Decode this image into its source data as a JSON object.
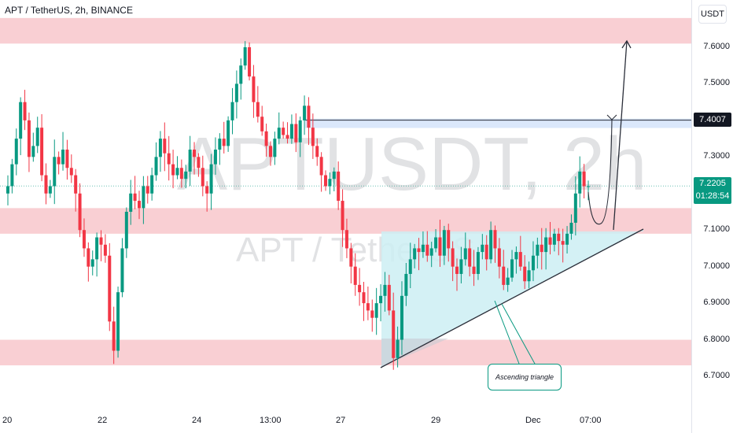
{
  "header": {
    "symbol_title": "APT / TetherUS, 2h, BINANCE"
  },
  "watermark": {
    "main": "APTUSDT, 2h",
    "sub": "APT / TetherUS"
  },
  "axis": {
    "unit_label": "USDT"
  },
  "colors": {
    "up": "#089981",
    "down": "#f23645",
    "zone": "#f8c7cb",
    "triangle_fill": "#cdeff3",
    "resistance_band": "#dbe8fb",
    "line": "#2a2e39"
  },
  "annotation": {
    "label": "Ascending triangle"
  },
  "chart_data": {
    "type": "candlestick",
    "title": "",
    "y_ticks": [
      "7.6000",
      "7.5000",
      "7.4000",
      "7.3000",
      "7.2000",
      "7.1000",
      "7.0000",
      "6.9000",
      "6.8000",
      "6.7000"
    ],
    "x_ticks": [
      "20",
      "22",
      "24",
      "13:00",
      "27",
      "29",
      "Dec",
      "07:00"
    ],
    "ylim": [
      6.64,
      7.73
    ],
    "resistance_level": {
      "price": "7.4007",
      "value": 7.4007
    },
    "last_price": {
      "price": "7.2205",
      "countdown": "01:28:54",
      "value": 7.2205
    },
    "zones": [
      {
        "from": 7.61,
        "to": 7.68
      },
      {
        "from": 7.09,
        "to": 7.16
      },
      {
        "from": 6.73,
        "to": 6.8
      }
    ],
    "closes": [
      7.22,
      7.28,
      7.35,
      7.45,
      7.4,
      7.3,
      7.33,
      7.38,
      7.25,
      7.2,
      7.22,
      7.3,
      7.28,
      7.32,
      7.27,
      7.25,
      7.2,
      7.1,
      7.05,
      7.0,
      7.02,
      7.08,
      7.06,
      7.03,
      6.85,
      6.77,
      6.93,
      7.05,
      7.15,
      7.2,
      7.18,
      7.16,
      7.22,
      7.2,
      7.25,
      7.3,
      7.35,
      7.31,
      7.28,
      7.25,
      7.27,
      7.24,
      7.26,
      7.32,
      7.3,
      7.27,
      7.22,
      7.2,
      7.28,
      7.32,
      7.35,
      7.33,
      7.4,
      7.45,
      7.5,
      7.55,
      7.6,
      7.52,
      7.45,
      7.41,
      7.37,
      7.33,
      7.3,
      7.35,
      7.38,
      7.36,
      7.35,
      7.39,
      7.34,
      7.4,
      7.44,
      7.38,
      7.33,
      7.3,
      7.25,
      7.22,
      7.24,
      7.26,
      7.18,
      7.1,
      7.05,
      7.0,
      6.95,
      6.93,
      6.9,
      6.88,
      6.86,
      6.9,
      6.92,
      6.95,
      6.88,
      6.75,
      6.8,
      6.92,
      6.98,
      7.02,
      7.05,
      7.04,
      7.06,
      7.03,
      7.05,
      7.08,
      7.03,
      7.1,
      7.05,
      7.0,
      6.98,
      7.02,
      7.05,
      7.0,
      6.98,
      7.04,
      7.06,
      7.02,
      7.1,
      7.05,
      7.0,
      6.95,
      6.97,
      7.02,
      7.04,
      7.0,
      6.96,
      6.99,
      7.03,
      7.06,
      7.04,
      7.08,
      7.06,
      7.09,
      7.07,
      7.06,
      7.09,
      7.12,
      7.2,
      7.26,
      7.22,
      7.22
    ]
  }
}
